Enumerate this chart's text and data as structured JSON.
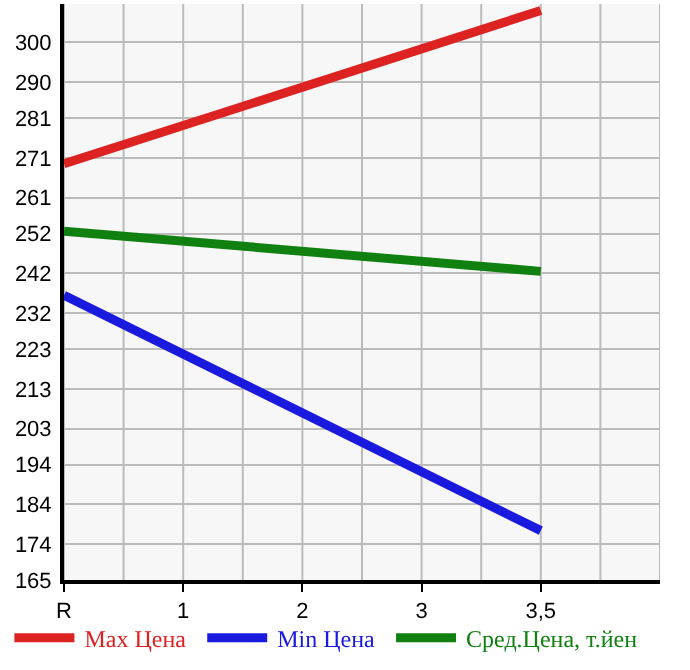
{
  "chart_data": {
    "type": "line",
    "categories": [
      "R",
      "1",
      "2",
      "3",
      "3,5"
    ],
    "series": [
      {
        "name": "Max Цена",
        "color": "#dd2222",
        "x": [
          "R",
          "3,5"
        ],
        "values": [
          269.5,
          308.0
        ]
      },
      {
        "name": "Min Цена",
        "color": "#1a1adf",
        "x": [
          "R",
          "3,5"
        ],
        "values": [
          236.5,
          177.4
        ]
      },
      {
        "name": "Сред.Цена, т.йен",
        "color": "#108010",
        "x": [
          "R",
          "3,5"
        ],
        "values": [
          252.6,
          242.5
        ]
      }
    ],
    "ylim": [
      165,
      309.64
    ],
    "yticks": [
      165,
      174,
      184,
      194,
      203,
      213,
      223,
      232,
      242,
      252,
      261,
      271,
      281,
      290,
      300,
      {
        "value": 309.64,
        "label": null
      }
    ],
    "grid": true,
    "legend": "bottom",
    "marker": "none",
    "line_style": "solid"
  }
}
